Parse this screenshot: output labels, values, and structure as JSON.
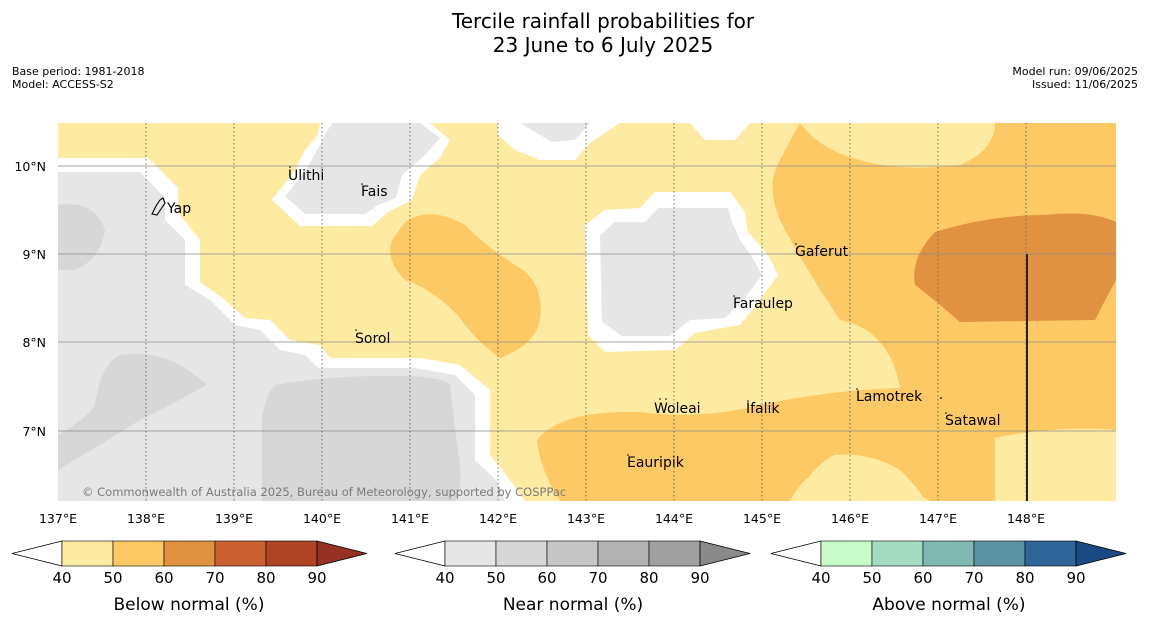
{
  "header": {
    "title_line1": "Tercile rainfall probabilities for",
    "title_line2": "23 June to 6 July 2025",
    "base_period": "Base period: 1981-2018",
    "model": "Model: ACCESS-S2",
    "model_run": "Model run: 09/06/2025",
    "issued": "Issued: 11/06/2025"
  },
  "map": {
    "lat_labels": [
      "10°N",
      "9°N",
      "8°N",
      "7°N"
    ],
    "lon_labels": [
      "137°E",
      "138°E",
      "139°E",
      "140°E",
      "141°E",
      "142°E",
      "143°E",
      "144°E",
      "145°E",
      "146°E",
      "147°E",
      "148°E"
    ],
    "places": {
      "yap": "Yap",
      "ulithi": "Ulithi",
      "fais": "Fais",
      "sorol": "Sorol",
      "gaferut": "Gaferut",
      "faraulep": "Faraulep",
      "woleai": "Woleai",
      "ifalik": "Ifalik",
      "lamotrek": "Lamotrek",
      "satawal": "Satawal",
      "eauripik": "Eauripik"
    },
    "copyright": "© Commonwealth of Australia 2025, Bureau of Meteorology, supported by COSPPac",
    "colors": {
      "below_40": "#feeba2",
      "below_50": "#fdc965",
      "below_60": "#e09241",
      "near_40": "#e6e6e6",
      "near_50": "#d7d7d7"
    }
  },
  "legends": [
    {
      "title": "Below normal (%)",
      "ticks": [
        "40",
        "50",
        "60",
        "70",
        "80",
        "90"
      ],
      "colors": [
        "#feeba2",
        "#fdc965",
        "#e09241",
        "#cb6131",
        "#ad4524"
      ],
      "extend_color": "#963224"
    },
    {
      "title": "Near normal (%)",
      "ticks": [
        "40",
        "50",
        "60",
        "70",
        "80",
        "90"
      ],
      "colors": [
        "#e6e6e6",
        "#d7d7d7",
        "#c6c6c6",
        "#b2b2b2",
        "#a0a0a0"
      ],
      "extend_color": "#8a8a8a"
    },
    {
      "title": "Above normal (%)",
      "ticks": [
        "40",
        "50",
        "60",
        "70",
        "80",
        "90"
      ],
      "colors": [
        "#c8fdcb",
        "#a3dcc0",
        "#80b8b2",
        "#5b93a3",
        "#2f6598"
      ],
      "extend_color": "#1a4a84"
    }
  ]
}
